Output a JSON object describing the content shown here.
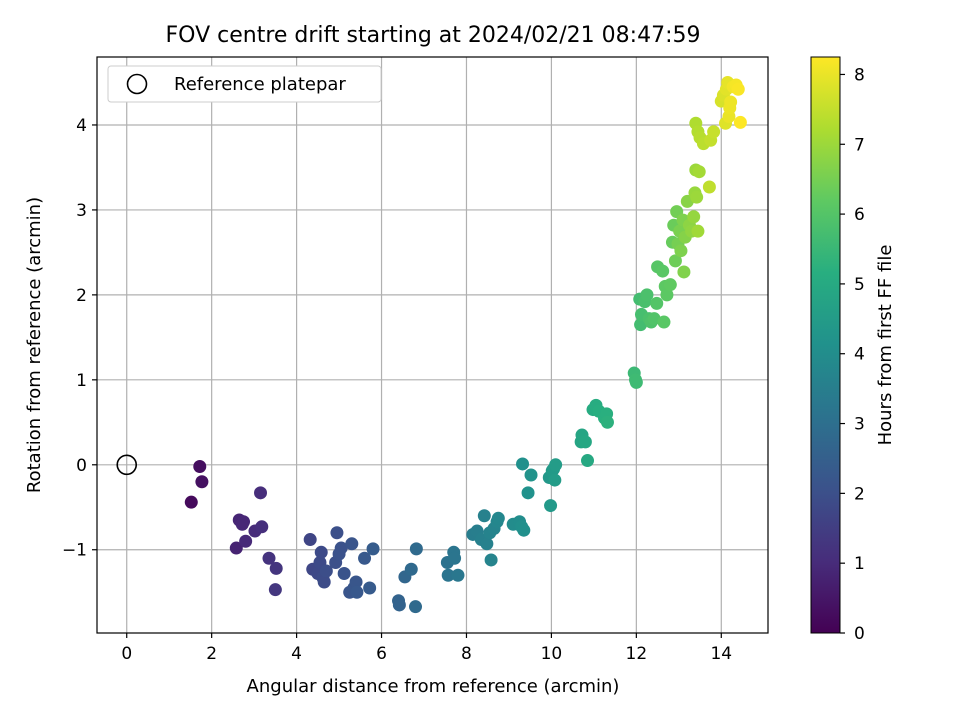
{
  "chart_data": {
    "type": "scatter",
    "title": "FOV centre drift starting at 2024/02/21 08:47:59",
    "xlabel": "Angular distance from reference (arcmin)",
    "ylabel": "Rotation from reference (arcmin)",
    "xlim": [
      -0.7,
      15.1
    ],
    "ylim": [
      -1.98,
      4.8
    ],
    "xticks": [
      0,
      2,
      4,
      6,
      8,
      10,
      12,
      14
    ],
    "yticks": [
      -1,
      0,
      1,
      2,
      3,
      4
    ],
    "grid": true,
    "colormap": "viridis",
    "colorbar": {
      "label": "Hours from first FF file",
      "range": [
        0,
        8.25
      ],
      "ticks": [
        0,
        1,
        2,
        3,
        4,
        5,
        6,
        7,
        8
      ]
    },
    "legend": {
      "position": "top-left",
      "entries": [
        {
          "label": "Reference platepar",
          "marker": "open-circle",
          "x": 0,
          "y": 0
        }
      ]
    },
    "points": [
      {
        "x": 1.52,
        "y": -0.44,
        "c": 0.2
      },
      {
        "x": 1.72,
        "y": -0.02,
        "c": 0.3
      },
      {
        "x": 1.77,
        "y": -0.2,
        "c": 0.35
      },
      {
        "x": 2.58,
        "y": -0.98,
        "c": 0.8
      },
      {
        "x": 2.65,
        "y": -0.65,
        "c": 0.85
      },
      {
        "x": 2.72,
        "y": -0.7,
        "c": 0.9
      },
      {
        "x": 2.75,
        "y": -0.67,
        "c": 0.9
      },
      {
        "x": 2.8,
        "y": -0.9,
        "c": 0.95
      },
      {
        "x": 3.02,
        "y": -0.78,
        "c": 1.0
      },
      {
        "x": 3.15,
        "y": -0.33,
        "c": 1.05
      },
      {
        "x": 3.18,
        "y": -0.73,
        "c": 1.1
      },
      {
        "x": 3.35,
        "y": -1.1,
        "c": 1.2
      },
      {
        "x": 3.52,
        "y": -1.22,
        "c": 1.25
      },
      {
        "x": 3.5,
        "y": -1.47,
        "c": 1.3
      },
      {
        "x": 4.32,
        "y": -0.88,
        "c": 1.7
      },
      {
        "x": 4.38,
        "y": -1.23,
        "c": 1.75
      },
      {
        "x": 4.5,
        "y": -1.28,
        "c": 1.8
      },
      {
        "x": 4.55,
        "y": -1.15,
        "c": 1.85
      },
      {
        "x": 4.58,
        "y": -1.03,
        "c": 1.85
      },
      {
        "x": 4.62,
        "y": -1.33,
        "c": 1.9
      },
      {
        "x": 4.65,
        "y": -1.38,
        "c": 1.9
      },
      {
        "x": 4.7,
        "y": -1.25,
        "c": 1.95
      },
      {
        "x": 4.92,
        "y": -1.15,
        "c": 2.0
      },
      {
        "x": 4.95,
        "y": -0.8,
        "c": 2.0
      },
      {
        "x": 5.0,
        "y": -1.05,
        "c": 2.05
      },
      {
        "x": 5.05,
        "y": -0.98,
        "c": 2.05
      },
      {
        "x": 5.12,
        "y": -1.28,
        "c": 2.1
      },
      {
        "x": 5.25,
        "y": -1.5,
        "c": 2.15
      },
      {
        "x": 5.3,
        "y": -0.93,
        "c": 2.15
      },
      {
        "x": 5.35,
        "y": -1.45,
        "c": 2.2
      },
      {
        "x": 5.4,
        "y": -1.38,
        "c": 2.2
      },
      {
        "x": 5.42,
        "y": -1.5,
        "c": 2.25
      },
      {
        "x": 5.6,
        "y": -1.1,
        "c": 2.3
      },
      {
        "x": 5.72,
        "y": -1.45,
        "c": 2.35
      },
      {
        "x": 5.8,
        "y": -0.99,
        "c": 2.4
      },
      {
        "x": 6.4,
        "y": -1.6,
        "c": 2.6
      },
      {
        "x": 6.42,
        "y": -1.65,
        "c": 2.6
      },
      {
        "x": 6.55,
        "y": -1.32,
        "c": 2.7
      },
      {
        "x": 6.7,
        "y": -1.23,
        "c": 2.8
      },
      {
        "x": 6.8,
        "y": -1.67,
        "c": 2.85
      },
      {
        "x": 6.82,
        "y": -0.99,
        "c": 2.85
      },
      {
        "x": 7.55,
        "y": -1.15,
        "c": 3.1
      },
      {
        "x": 7.57,
        "y": -1.3,
        "c": 3.15
      },
      {
        "x": 7.7,
        "y": -1.03,
        "c": 3.2
      },
      {
        "x": 7.72,
        "y": -1.1,
        "c": 3.2
      },
      {
        "x": 7.8,
        "y": -1.3,
        "c": 3.25
      },
      {
        "x": 8.15,
        "y": -0.82,
        "c": 3.45
      },
      {
        "x": 8.25,
        "y": -0.78,
        "c": 3.5
      },
      {
        "x": 8.35,
        "y": -0.88,
        "c": 3.55
      },
      {
        "x": 8.42,
        "y": -0.6,
        "c": 3.6
      },
      {
        "x": 8.48,
        "y": -0.93,
        "c": 3.6
      },
      {
        "x": 8.55,
        "y": -0.8,
        "c": 3.65
      },
      {
        "x": 8.58,
        "y": -1.12,
        "c": 3.7
      },
      {
        "x": 8.65,
        "y": -0.75,
        "c": 3.7
      },
      {
        "x": 8.72,
        "y": -0.67,
        "c": 3.75
      },
      {
        "x": 8.75,
        "y": -0.63,
        "c": 3.8
      },
      {
        "x": 9.1,
        "y": -0.7,
        "c": 3.95
      },
      {
        "x": 9.25,
        "y": -0.67,
        "c": 4.0
      },
      {
        "x": 9.3,
        "y": -0.73,
        "c": 4.05
      },
      {
        "x": 9.32,
        "y": 0.01,
        "c": 4.1
      },
      {
        "x": 9.35,
        "y": -0.77,
        "c": 4.1
      },
      {
        "x": 9.45,
        "y": -0.33,
        "c": 4.15
      },
      {
        "x": 9.52,
        "y": -0.12,
        "c": 4.2
      },
      {
        "x": 9.95,
        "y": -0.15,
        "c": 4.35
      },
      {
        "x": 9.98,
        "y": -0.48,
        "c": 4.4
      },
      {
        "x": 10.02,
        "y": -0.07,
        "c": 4.45
      },
      {
        "x": 10.05,
        "y": -0.05,
        "c": 4.45
      },
      {
        "x": 10.08,
        "y": -0.18,
        "c": 4.5
      },
      {
        "x": 10.1,
        "y": 0.0,
        "c": 4.5
      },
      {
        "x": 10.7,
        "y": 0.27,
        "c": 4.8
      },
      {
        "x": 10.72,
        "y": 0.35,
        "c": 4.85
      },
      {
        "x": 10.8,
        "y": 0.27,
        "c": 4.9
      },
      {
        "x": 10.85,
        "y": 0.05,
        "c": 4.95
      },
      {
        "x": 10.98,
        "y": 0.65,
        "c": 5.05
      },
      {
        "x": 11.05,
        "y": 0.7,
        "c": 5.1
      },
      {
        "x": 11.12,
        "y": 0.63,
        "c": 5.15
      },
      {
        "x": 11.25,
        "y": 0.55,
        "c": 5.2
      },
      {
        "x": 11.3,
        "y": 0.6,
        "c": 5.2
      },
      {
        "x": 11.32,
        "y": 0.5,
        "c": 5.25
      },
      {
        "x": 11.95,
        "y": 1.08,
        "c": 5.55
      },
      {
        "x": 11.98,
        "y": 1.0,
        "c": 5.6
      },
      {
        "x": 12.0,
        "y": 0.97,
        "c": 5.6
      },
      {
        "x": 12.08,
        "y": 1.95,
        "c": 5.7
      },
      {
        "x": 12.1,
        "y": 1.65,
        "c": 5.7
      },
      {
        "x": 12.12,
        "y": 1.77,
        "c": 5.75
      },
      {
        "x": 12.2,
        "y": 1.92,
        "c": 5.8
      },
      {
        "x": 12.25,
        "y": 2.0,
        "c": 5.85
      },
      {
        "x": 12.3,
        "y": 1.72,
        "c": 5.85
      },
      {
        "x": 12.35,
        "y": 1.68,
        "c": 5.9
      },
      {
        "x": 12.42,
        "y": 1.72,
        "c": 5.95
      },
      {
        "x": 12.48,
        "y": 1.9,
        "c": 6.0
      },
      {
        "x": 12.5,
        "y": 2.33,
        "c": 6.05
      },
      {
        "x": 12.62,
        "y": 2.28,
        "c": 6.1
      },
      {
        "x": 12.65,
        "y": 1.68,
        "c": 6.1
      },
      {
        "x": 12.68,
        "y": 2.1,
        "c": 6.15
      },
      {
        "x": 12.72,
        "y": 2.0,
        "c": 6.15
      },
      {
        "x": 12.8,
        "y": 2.12,
        "c": 6.2
      },
      {
        "x": 12.85,
        "y": 2.62,
        "c": 6.3
      },
      {
        "x": 12.88,
        "y": 2.82,
        "c": 6.35
      },
      {
        "x": 12.92,
        "y": 2.4,
        "c": 6.4
      },
      {
        "x": 12.95,
        "y": 2.98,
        "c": 6.45
      },
      {
        "x": 12.98,
        "y": 2.6,
        "c": 6.5
      },
      {
        "x": 13.02,
        "y": 2.75,
        "c": 6.55
      },
      {
        "x": 13.05,
        "y": 2.52,
        "c": 6.6
      },
      {
        "x": 13.1,
        "y": 2.88,
        "c": 6.6
      },
      {
        "x": 13.12,
        "y": 2.27,
        "c": 6.65
      },
      {
        "x": 13.15,
        "y": 2.68,
        "c": 6.7
      },
      {
        "x": 13.2,
        "y": 3.1,
        "c": 6.75
      },
      {
        "x": 13.25,
        "y": 2.82,
        "c": 6.8
      },
      {
        "x": 13.3,
        "y": 2.75,
        "c": 6.85
      },
      {
        "x": 13.35,
        "y": 2.92,
        "c": 6.9
      },
      {
        "x": 13.38,
        "y": 3.2,
        "c": 6.95
      },
      {
        "x": 13.4,
        "y": 3.47,
        "c": 7.0
      },
      {
        "x": 13.42,
        "y": 3.15,
        "c": 7.0
      },
      {
        "x": 13.45,
        "y": 2.75,
        "c": 7.05
      },
      {
        "x": 13.48,
        "y": 3.45,
        "c": 7.1
      },
      {
        "x": 13.4,
        "y": 4.02,
        "c": 7.25
      },
      {
        "x": 13.45,
        "y": 3.92,
        "c": 7.3
      },
      {
        "x": 13.5,
        "y": 3.85,
        "c": 7.35
      },
      {
        "x": 13.58,
        "y": 3.78,
        "c": 7.4
      },
      {
        "x": 13.72,
        "y": 3.27,
        "c": 7.45
      },
      {
        "x": 13.75,
        "y": 3.82,
        "c": 7.5
      },
      {
        "x": 13.82,
        "y": 3.92,
        "c": 7.55
      },
      {
        "x": 14.0,
        "y": 4.28,
        "c": 7.75
      },
      {
        "x": 14.05,
        "y": 4.35,
        "c": 7.8
      },
      {
        "x": 14.1,
        "y": 4.02,
        "c": 7.85
      },
      {
        "x": 14.12,
        "y": 4.42,
        "c": 7.9
      },
      {
        "x": 14.15,
        "y": 4.5,
        "c": 7.95
      },
      {
        "x": 14.18,
        "y": 4.1,
        "c": 8.0
      },
      {
        "x": 14.2,
        "y": 4.2,
        "c": 8.05
      },
      {
        "x": 14.22,
        "y": 4.27,
        "c": 8.05
      },
      {
        "x": 14.28,
        "y": 4.45,
        "c": 8.1
      },
      {
        "x": 14.35,
        "y": 4.47,
        "c": 8.15
      },
      {
        "x": 14.4,
        "y": 4.42,
        "c": 8.2
      },
      {
        "x": 14.45,
        "y": 4.03,
        "c": 8.25
      }
    ]
  }
}
